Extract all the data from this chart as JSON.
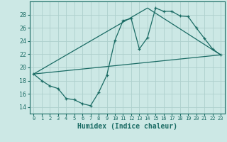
{
  "title": "",
  "xlabel": "Humidex (Indice chaleur)",
  "background_color": "#cce8e5",
  "grid_color": "#aed0cd",
  "line_color": "#1a6b64",
  "xlim": [
    -0.5,
    23.5
  ],
  "ylim": [
    13.0,
    30.0
  ],
  "xticks": [
    0,
    1,
    2,
    3,
    4,
    5,
    6,
    7,
    8,
    9,
    10,
    11,
    12,
    13,
    14,
    15,
    16,
    17,
    18,
    19,
    20,
    21,
    22,
    23
  ],
  "yticks": [
    14,
    16,
    18,
    20,
    22,
    24,
    26,
    28
  ],
  "line1_x": [
    0,
    1,
    2,
    3,
    4,
    5,
    6,
    7,
    8,
    9,
    10,
    11,
    12,
    13,
    14,
    15,
    16,
    17,
    18,
    19,
    20,
    21,
    22,
    23
  ],
  "line1_y": [
    19.0,
    18.0,
    17.2,
    16.8,
    15.3,
    15.1,
    14.5,
    14.2,
    16.2,
    18.8,
    24.1,
    27.1,
    27.4,
    22.8,
    24.5,
    29.0,
    28.5,
    28.5,
    27.8,
    27.7,
    26.0,
    24.4,
    22.8,
    21.9
  ],
  "line2_x": [
    0,
    23
  ],
  "line2_y": [
    19.0,
    21.9
  ],
  "line3_x": [
    0,
    14,
    23
  ],
  "line3_y": [
    19.0,
    29.0,
    21.9
  ]
}
